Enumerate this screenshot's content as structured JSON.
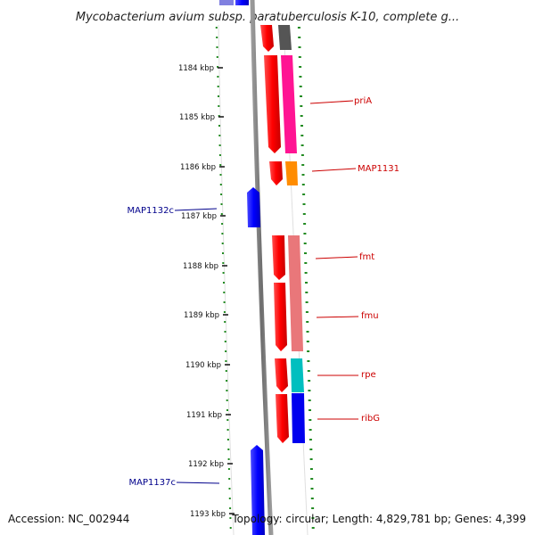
{
  "title": "Mycobacterium avium subsp. paratuberculosis K-10, complete g...",
  "footer": {
    "accession": "Accession: NC_002944",
    "summary": "Topology: circular; Length: 4,829,781 bp; Genes: 4,399"
  },
  "kbp_ticks": [
    "1184 kbp",
    "1185 kbp",
    "1186 kbp",
    "1187 kbp",
    "1188 kbp",
    "1189 kbp",
    "1190 kbp",
    "1191 kbp",
    "1192 kbp",
    "1193 kbp"
  ],
  "gene_labels": [
    {
      "name": "priA",
      "side": "right",
      "color": "#cc0000"
    },
    {
      "name": "MAP1131",
      "side": "right",
      "color": "#cc0000"
    },
    {
      "name": "MAP1132c",
      "side": "left",
      "color": "#00008b"
    },
    {
      "name": "fmt",
      "side": "right",
      "color": "#cc0000"
    },
    {
      "name": "fmu",
      "side": "right",
      "color": "#cc0000"
    },
    {
      "name": "rpe",
      "side": "right",
      "color": "#cc0000"
    },
    {
      "name": "ribG",
      "side": "right",
      "color": "#cc0000"
    },
    {
      "name": "MAP1137c",
      "side": "left",
      "color": "#00008b"
    }
  ],
  "colors": {
    "forward_strand": "#ff0000",
    "reverse_strand": "#0000ff",
    "backbone": "#808080",
    "tick_dots": "#228b22",
    "cog_grey": "#555555",
    "cog_pink": "#ff1493",
    "cog_orange": "#ff8c00",
    "cog_salmon": "#e9777a",
    "cog_cyan": "#00bfbf",
    "cog_blue": "#0000ee"
  }
}
